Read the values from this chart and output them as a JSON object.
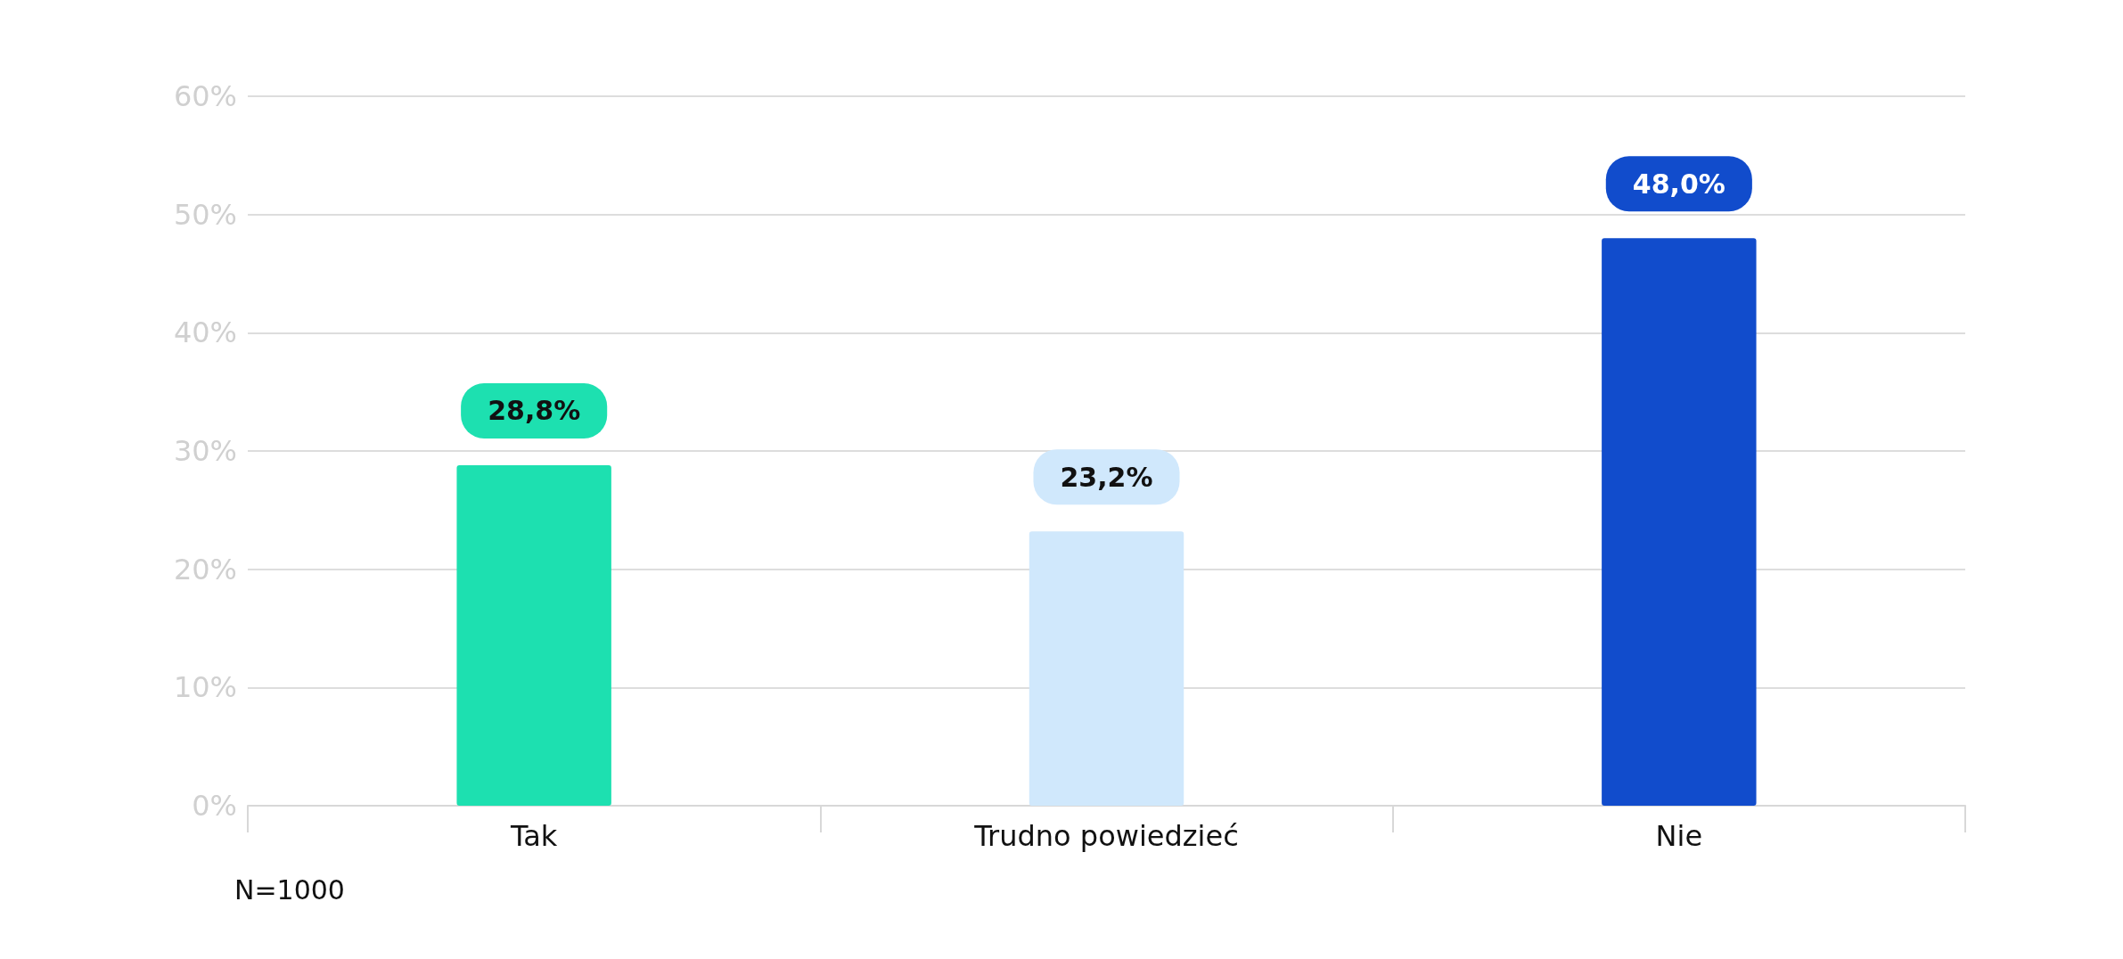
{
  "chart_data": {
    "type": "bar",
    "categories": [
      "Tak",
      "Trudno powiedzieć",
      "Nie"
    ],
    "values": [
      28.8,
      23.2,
      48.0
    ],
    "colors": [
      "#1de0b0",
      "#d0e8fc",
      "#114ccc"
    ],
    "value_labels": [
      "28,8%",
      "23,2%",
      "48,0%"
    ],
    "ylim": [
      0,
      60
    ],
    "yticks": [
      {
        "value": 0,
        "label": "0%"
      },
      {
        "value": 10,
        "label": "10%"
      },
      {
        "value": 20,
        "label": "20%"
      },
      {
        "value": 30,
        "label": "30%"
      },
      {
        "value": 40,
        "label": "40%"
      },
      {
        "value": 50,
        "label": "50%"
      },
      {
        "value": 60,
        "label": "60%"
      }
    ],
    "grid": "y",
    "annotations": [
      "N=1000"
    ]
  }
}
